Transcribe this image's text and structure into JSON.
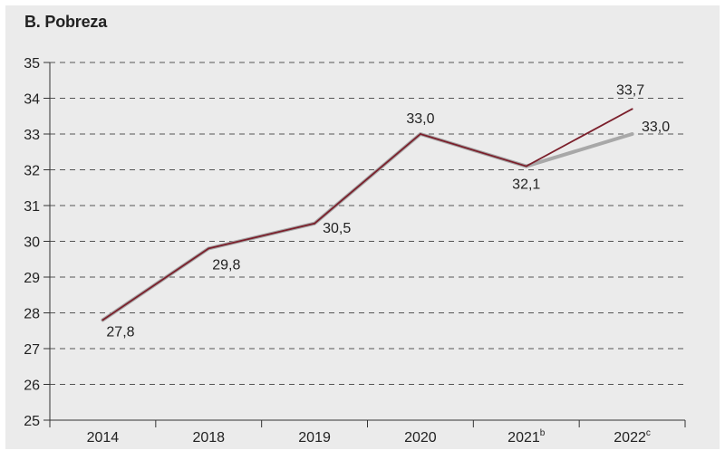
{
  "title": "B. Pobreza",
  "colors": {
    "background": "#ebebeb",
    "main_series": "#7b1f2b",
    "projection_series": "#a8a8a8",
    "grid": "#555555"
  },
  "chart_data": {
    "type": "line",
    "title": "B. Pobreza",
    "xlabel": "",
    "ylabel": "",
    "ylim": [
      25,
      35
    ],
    "yticks": [
      25,
      26,
      27,
      28,
      29,
      30,
      31,
      32,
      33,
      34,
      35
    ],
    "ytick_labels": [
      "25",
      "26",
      "27",
      "28",
      "29",
      "30",
      "31",
      "32",
      "33",
      "34",
      "35"
    ],
    "grid": "horizontal-dashed",
    "categories": [
      {
        "label": "2014",
        "sup": ""
      },
      {
        "label": "2018",
        "sup": ""
      },
      {
        "label": "2019",
        "sup": ""
      },
      {
        "label": "2020",
        "sup": ""
      },
      {
        "label": "2021",
        "sup": "b"
      },
      {
        "label": "2022",
        "sup": "c"
      }
    ],
    "series": [
      {
        "values": [
          27.8,
          29.8,
          30.5,
          33.0,
          32.1,
          33.7
        ],
        "labels": [
          "27,8",
          "29,8",
          "30,5",
          "33,0",
          "32,1",
          "33,7"
        ],
        "color": "#7b1f2b"
      },
      {
        "values": [
          27.8,
          29.8,
          30.5,
          33.0,
          32.1,
          33.0
        ],
        "labels": [
          "",
          "",
          "",
          "",
          "",
          "33,0"
        ],
        "color": "#a8a8a8"
      }
    ]
  }
}
